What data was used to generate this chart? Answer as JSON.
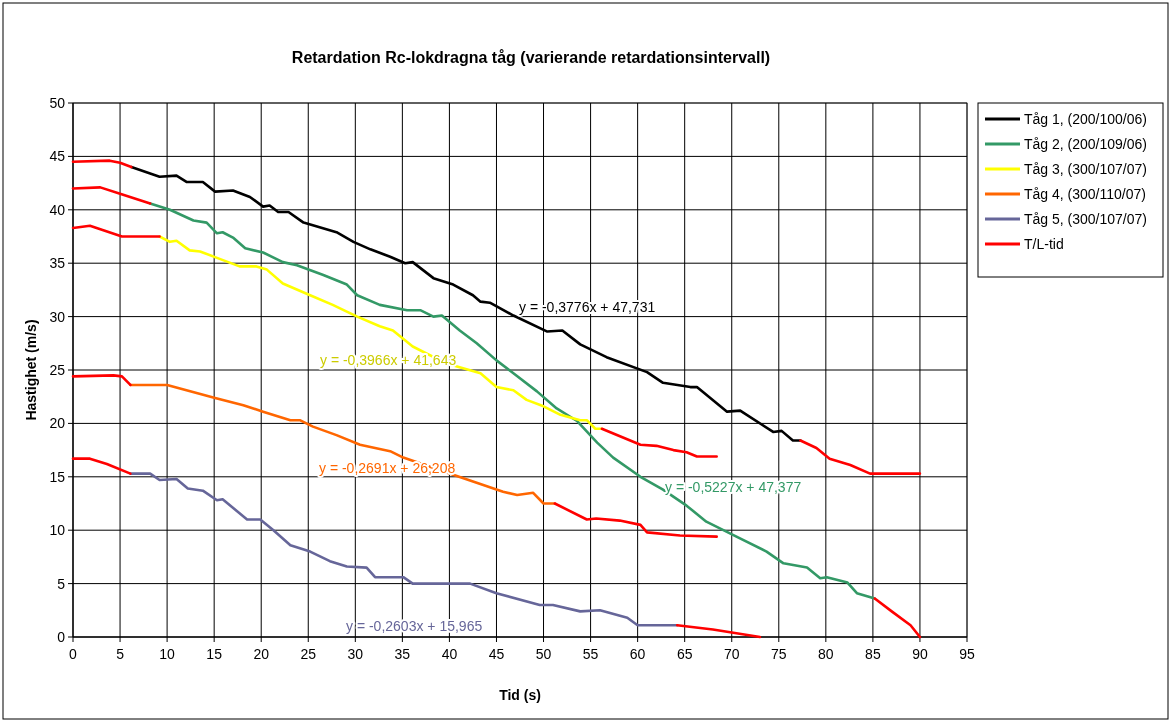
{
  "chart_data": {
    "type": "line",
    "title": "Retardation Rc-lokdragna tåg (varierande retardationsintervall)",
    "xlabel": "Tid (s)",
    "ylabel": "Hastighet (m/s)",
    "xlim": [
      0,
      95
    ],
    "xticks": [
      0,
      5,
      10,
      15,
      20,
      25,
      30,
      35,
      40,
      45,
      50,
      55,
      60,
      65,
      70,
      75,
      80,
      85,
      90,
      95
    ],
    "ylim": [
      0,
      50
    ],
    "yticks": [
      0,
      5,
      10,
      15,
      20,
      25,
      30,
      35,
      40,
      45,
      50
    ],
    "grid": true,
    "legend": "right",
    "marker": "none",
    "line_style": "solid",
    "series": [
      {
        "name": "Tåg 1, (200/100/06)",
        "color": "#000000",
        "x": [
          6.2,
          9.2,
          11,
          12.1,
          13.8,
          15.1,
          17,
          18.8,
          20.2,
          20.9,
          21.8,
          22.9,
          24.5,
          28,
          29.8,
          31.6,
          33.7,
          35.3,
          36.1,
          38.3,
          40.4,
          42.5,
          43.3,
          44.3,
          46.8,
          50.4,
          52,
          53.9,
          56.7,
          61,
          62.7,
          65.6,
          66.3,
          69.5,
          70.9,
          74.4,
          75.3,
          76.5,
          77.3
        ],
        "values": [
          44.0,
          43.1,
          43.2,
          42.6,
          42.6,
          41.7,
          41.8,
          41.2,
          40.3,
          40.4,
          39.8,
          39.8,
          38.8,
          37.9,
          37.0,
          36.3,
          35.6,
          35.0,
          35.1,
          33.6,
          33.0,
          32.0,
          31.4,
          31.3,
          30.1,
          28.6,
          28.7,
          27.4,
          26.2,
          24.8,
          23.8,
          23.4,
          23.4,
          21.1,
          21.2,
          19.2,
          19.3,
          18.4,
          18.4
        ]
      },
      {
        "name": "Tåg 2, (200/109/06)",
        "color": "#339966",
        "x": [
          8.2,
          10.3,
          12.8,
          14.2,
          15.3,
          15.9,
          17,
          18.3,
          20.2,
          22.3,
          23.8,
          26.6,
          29.1,
          30.2,
          32.6,
          35.5,
          36.9,
          38.3,
          39.2,
          41.1,
          42.9,
          45,
          46.8,
          49.3,
          51.4,
          53.6,
          55.7,
          57.4,
          60.3,
          62.7,
          65.2,
          67.3,
          70.5,
          73.7,
          75.5,
          78,
          79.4,
          80.1,
          82.3,
          83.3,
          85.2
        ],
        "values": [
          40.6,
          40.0,
          39.0,
          38.8,
          37.8,
          37.9,
          37.4,
          36.4,
          36.0,
          35.1,
          34.8,
          33.9,
          33.0,
          32.0,
          31.1,
          30.6,
          30.6,
          30.0,
          30.1,
          28.7,
          27.5,
          25.9,
          24.7,
          23.0,
          21.4,
          20.2,
          18.2,
          16.8,
          15.0,
          13.8,
          12.3,
          10.8,
          9.4,
          8.0,
          6.9,
          6.5,
          5.5,
          5.6,
          5.1,
          4.1,
          3.6
        ]
      },
      {
        "name": "Tåg 3, (300/107/07)",
        "color": "#ffff00",
        "x": [
          9.2,
          10.3,
          11,
          12.4,
          13.5,
          15.3,
          17.7,
          19.5,
          20.6,
          22.3,
          25.2,
          27.6,
          30.2,
          32.6,
          34,
          36.1,
          39.7,
          43.3,
          45,
          46.8,
          48.2,
          50,
          51.8,
          53.9,
          54.6,
          55.5,
          56.2
        ],
        "values": [
          37.5,
          37.0,
          37.1,
          36.2,
          36.1,
          35.5,
          34.7,
          34.7,
          34.4,
          33.1,
          32.0,
          31.1,
          30.0,
          29.1,
          28.7,
          27.2,
          25.6,
          24.7,
          23.4,
          23.1,
          22.2,
          21.6,
          20.8,
          20.3,
          20.3,
          19.5,
          19.5
        ]
      },
      {
        "name": "Tåg 4, (300/110/07)",
        "color": "#ff6600",
        "x": [
          6.1,
          10,
          15,
          18.1,
          20.2,
          23.1,
          24.1,
          25.5,
          28,
          30.5,
          33.7,
          35.1,
          40.4,
          45.7,
          47.2,
          48.9,
          50,
          51.2
        ],
        "values": [
          23.6,
          23.6,
          22.4,
          21.7,
          21.1,
          20.3,
          20.3,
          19.7,
          18.9,
          18.0,
          17.4,
          16.8,
          15.2,
          13.6,
          13.3,
          13.5,
          12.5,
          12.5
        ]
      },
      {
        "name": "Tåg 5, (300/107/07)",
        "color": "#666699",
        "x": [
          6.1,
          8.2,
          9.2,
          11,
          12.2,
          13.8,
          15.3,
          15.9,
          18.5,
          19.9,
          21.3,
          23.1,
          25.2,
          27.3,
          29.1,
          31.2,
          32.1,
          33.7,
          35.1,
          36.1,
          42.2,
          45,
          49.6,
          51,
          53.9,
          56,
          58.9,
          60,
          64.2
        ],
        "values": [
          15.3,
          15.3,
          14.7,
          14.8,
          13.9,
          13.7,
          12.8,
          12.9,
          11.0,
          11.0,
          10.0,
          8.6,
          8.0,
          7.1,
          6.6,
          6.5,
          5.6,
          5.6,
          5.6,
          5.0,
          5.0,
          4.1,
          3.0,
          3.0,
          2.4,
          2.5,
          1.8,
          1.1,
          1.1
        ]
      },
      {
        "name": "T/L-tid",
        "color": "#ff0000",
        "x": [
          0,
          3.9,
          5,
          6.2
        ],
        "values": [
          44.5,
          44.6,
          44.4,
          44.0
        ]
      },
      {
        "color": "#ff0000",
        "x": [
          0,
          2.9,
          5,
          8.2
        ],
        "values": [
          42.0,
          42.1,
          41.5,
          40.6
        ]
      },
      {
        "color": "#ff0000",
        "x": [
          0,
          1.8,
          5.2,
          9.2
        ],
        "values": [
          38.3,
          38.5,
          37.5,
          37.5
        ]
      },
      {
        "color": "#ff0000",
        "x": [
          0,
          4.3,
          5.2,
          6.1
        ],
        "values": [
          24.4,
          24.5,
          24.4,
          23.6
        ]
      },
      {
        "color": "#ff0000",
        "x": [
          0,
          1.8,
          3.6,
          6.1
        ],
        "values": [
          16.7,
          16.7,
          16.2,
          15.3
        ]
      },
      {
        "color": "#ff0000",
        "x": [
          56.2,
          60.3,
          62,
          63.8,
          65.2,
          66.3,
          68.4
        ],
        "values": [
          19.5,
          18.0,
          17.9,
          17.5,
          17.3,
          16.9,
          16.9
        ]
      },
      {
        "color": "#ff0000",
        "x": [
          51.2,
          54.6,
          55.6,
          58.1,
          60.3,
          61,
          64.5,
          68.4
        ],
        "values": [
          12.5,
          11.0,
          11.1,
          10.9,
          10.5,
          9.8,
          9.5,
          9.4
        ]
      },
      {
        "color": "#ff0000",
        "x": [
          77.3,
          79,
          80.4,
          82.6,
          84.7,
          86.8,
          90
        ],
        "values": [
          18.4,
          17.7,
          16.7,
          16.1,
          15.3,
          15.3,
          15.3
        ]
      },
      {
        "color": "#ff0000",
        "x": [
          85.2,
          87,
          89,
          90
        ],
        "values": [
          3.6,
          2.4,
          1.1,
          0
        ]
      },
      {
        "color": "#ff0000",
        "x": [
          64.2,
          68,
          73
        ],
        "values": [
          1.1,
          0.7,
          0
        ]
      }
    ],
    "annotations": [
      "y = -0,3776x + 47,731",
      "y = -0,5227x + 47,377",
      "y = -0,3966x + 41,643",
      "y = -0,2691x + 26,208",
      "y = -0,2603x + 15,965"
    ]
  }
}
